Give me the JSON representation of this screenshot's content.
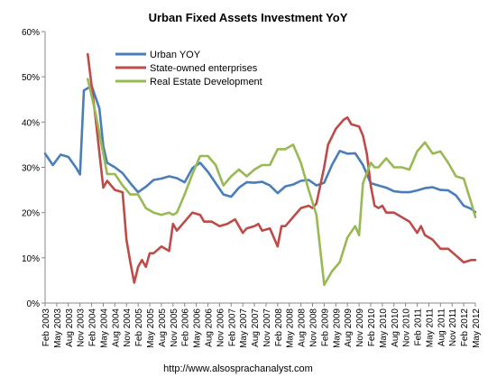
{
  "chart_data": {
    "type": "line",
    "title": "Urban Fixed Assets Investment YoY",
    "footer": "http://www.alsosprachanalyst.com",
    "xlabel": "",
    "ylabel": "",
    "ylim": [
      0,
      60
    ],
    "yticks": [
      "0%",
      "10%",
      "20%",
      "30%",
      "40%",
      "50%",
      "60%"
    ],
    "grid": false,
    "legend_position": "top-left",
    "x_start": "2003-02",
    "x_end": "2012-05",
    "x_tick_labels": [
      "Feb 2003",
      "May 2003",
      "Aug 2003",
      "Nov 2003",
      "Feb 2004",
      "May 2004",
      "Aug 2004",
      "Nov 2004",
      "Feb 2005",
      "May 2005",
      "Aug 2005",
      "Nov 2005",
      "Feb 2006",
      "May 2006",
      "Aug 2006",
      "Nov 2006",
      "Feb 2007",
      "May 2007",
      "Aug 2007",
      "Nov 2007",
      "Feb 2008",
      "May 2008",
      "Aug 2008",
      "Nov 2008",
      "Feb 2009",
      "May 2009",
      "Aug 2009",
      "Nov 2009",
      "Feb 2010",
      "May 2010",
      "Aug 2010",
      "Nov 2010",
      "Feb 2011",
      "May 2011",
      "Aug 2011",
      "Nov 2011",
      "Feb 2012",
      "May 2012"
    ],
    "series": [
      {
        "name": "Urban YOY",
        "color": "#4a7ebb",
        "points": [
          [
            "2003-02",
            33.0
          ],
          [
            "2003-04",
            30.5
          ],
          [
            "2003-06",
            32.8
          ],
          [
            "2003-08",
            32.3
          ],
          [
            "2003-10",
            29.9
          ],
          [
            "2003-11",
            28.4
          ],
          [
            "2003-12",
            47.0
          ],
          [
            "2004-02",
            48.0
          ],
          [
            "2004-04",
            43.0
          ],
          [
            "2004-05",
            34.7
          ],
          [
            "2004-06",
            31.0
          ],
          [
            "2004-08",
            30.0
          ],
          [
            "2004-10",
            28.7
          ],
          [
            "2004-12",
            26.5
          ],
          [
            "2005-02",
            24.5
          ],
          [
            "2005-04",
            25.7
          ],
          [
            "2005-06",
            27.2
          ],
          [
            "2005-08",
            27.5
          ],
          [
            "2005-10",
            28.0
          ],
          [
            "2005-12",
            27.6
          ],
          [
            "2006-02",
            26.7
          ],
          [
            "2006-04",
            29.8
          ],
          [
            "2006-06",
            31.0
          ],
          [
            "2006-08",
            29.0
          ],
          [
            "2006-10",
            26.5
          ],
          [
            "2006-12",
            24.0
          ],
          [
            "2007-02",
            23.5
          ],
          [
            "2007-04",
            25.5
          ],
          [
            "2007-06",
            26.7
          ],
          [
            "2007-08",
            26.6
          ],
          [
            "2007-10",
            26.8
          ],
          [
            "2007-12",
            26.0
          ],
          [
            "2008-02",
            24.3
          ],
          [
            "2008-04",
            25.8
          ],
          [
            "2008-06",
            26.2
          ],
          [
            "2008-08",
            27.0
          ],
          [
            "2008-10",
            27.2
          ],
          [
            "2008-12",
            26.0
          ],
          [
            "2009-02",
            26.6
          ],
          [
            "2009-04",
            30.5
          ],
          [
            "2009-06",
            33.6
          ],
          [
            "2009-08",
            33.0
          ],
          [
            "2009-10",
            33.1
          ],
          [
            "2009-12",
            30.5
          ],
          [
            "2010-02",
            26.5
          ],
          [
            "2010-04",
            26.0
          ],
          [
            "2010-06",
            25.5
          ],
          [
            "2010-08",
            24.7
          ],
          [
            "2010-10",
            24.5
          ],
          [
            "2010-12",
            24.5
          ],
          [
            "2011-02",
            24.9
          ],
          [
            "2011-04",
            25.4
          ],
          [
            "2011-06",
            25.6
          ],
          [
            "2011-08",
            25.0
          ],
          [
            "2011-10",
            24.9
          ],
          [
            "2011-12",
            23.8
          ],
          [
            "2012-02",
            21.5
          ],
          [
            "2012-04",
            20.8
          ],
          [
            "2012-05",
            20.1
          ]
        ]
      },
      {
        "name": "State-owned enterprises",
        "color": "#be4b48",
        "points": [
          [
            "2004-01",
            55.0
          ],
          [
            "2004-03",
            41.0
          ],
          [
            "2004-05",
            25.5
          ],
          [
            "2004-06",
            27.0
          ],
          [
            "2004-08",
            25.0
          ],
          [
            "2004-10",
            24.5
          ],
          [
            "2004-11",
            14.0
          ],
          [
            "2004-12",
            9.0
          ],
          [
            "2005-01",
            4.5
          ],
          [
            "2005-02",
            8.0
          ],
          [
            "2005-03",
            9.5
          ],
          [
            "2005-04",
            8.0
          ],
          [
            "2005-05",
            11.0
          ],
          [
            "2005-06",
            11.0
          ],
          [
            "2005-08",
            12.5
          ],
          [
            "2005-10",
            11.5
          ],
          [
            "2005-11",
            17.5
          ],
          [
            "2005-12",
            16.0
          ],
          [
            "2006-02",
            18.0
          ],
          [
            "2006-04",
            20.0
          ],
          [
            "2006-06",
            19.5
          ],
          [
            "2006-07",
            18.0
          ],
          [
            "2006-09",
            18.0
          ],
          [
            "2006-11",
            17.0
          ],
          [
            "2007-01",
            17.5
          ],
          [
            "2007-03",
            18.5
          ],
          [
            "2007-04",
            17.0
          ],
          [
            "2007-05",
            15.5
          ],
          [
            "2007-06",
            16.5
          ],
          [
            "2007-08",
            17.0
          ],
          [
            "2007-09",
            17.5
          ],
          [
            "2007-10",
            16.0
          ],
          [
            "2007-12",
            16.5
          ],
          [
            "2008-02",
            12.5
          ],
          [
            "2008-03",
            17.0
          ],
          [
            "2008-04",
            17.0
          ],
          [
            "2008-06",
            19.0
          ],
          [
            "2008-08",
            21.0
          ],
          [
            "2008-10",
            21.5
          ],
          [
            "2008-11",
            21.0
          ],
          [
            "2008-12",
            22.0
          ],
          [
            "2009-02",
            30.0
          ],
          [
            "2009-03",
            35.0
          ],
          [
            "2009-05",
            38.5
          ],
          [
            "2009-07",
            40.5
          ],
          [
            "2009-08",
            41.0
          ],
          [
            "2009-09",
            39.5
          ],
          [
            "2009-11",
            39.0
          ],
          [
            "2009-12",
            37.0
          ],
          [
            "2010-01",
            33.0
          ],
          [
            "2010-02",
            26.0
          ],
          [
            "2010-03",
            21.5
          ],
          [
            "2010-04",
            21.0
          ],
          [
            "2010-05",
            21.5
          ],
          [
            "2010-06",
            20.0
          ],
          [
            "2010-08",
            20.0
          ],
          [
            "2010-10",
            19.0
          ],
          [
            "2010-12",
            18.0
          ],
          [
            "2011-02",
            15.5
          ],
          [
            "2011-03",
            17.0
          ],
          [
            "2011-04",
            15.0
          ],
          [
            "2011-06",
            14.0
          ],
          [
            "2011-08",
            12.0
          ],
          [
            "2011-10",
            12.0
          ],
          [
            "2011-12",
            10.5
          ],
          [
            "2012-02",
            9.0
          ],
          [
            "2012-04",
            9.5
          ],
          [
            "2012-05",
            9.5
          ]
        ]
      },
      {
        "name": "Real Estate Development",
        "color": "#98b954",
        "points": [
          [
            "2004-01",
            49.5
          ],
          [
            "2004-03",
            42.0
          ],
          [
            "2004-05",
            33.0
          ],
          [
            "2004-06",
            28.5
          ],
          [
            "2004-08",
            28.5
          ],
          [
            "2004-10",
            26.0
          ],
          [
            "2004-12",
            24.0
          ],
          [
            "2005-02",
            24.0
          ],
          [
            "2005-04",
            21.0
          ],
          [
            "2005-06",
            20.0
          ],
          [
            "2005-08",
            19.5
          ],
          [
            "2005-10",
            20.0
          ],
          [
            "2005-11",
            19.5
          ],
          [
            "2005-12",
            20.0
          ],
          [
            "2006-02",
            24.0
          ],
          [
            "2006-04",
            28.5
          ],
          [
            "2006-05",
            30.5
          ],
          [
            "2006-06",
            32.5
          ],
          [
            "2006-08",
            32.5
          ],
          [
            "2006-10",
            30.5
          ],
          [
            "2006-12",
            26.0
          ],
          [
            "2007-02",
            28.0
          ],
          [
            "2007-04",
            29.5
          ],
          [
            "2007-06",
            28.0
          ],
          [
            "2007-08",
            29.5
          ],
          [
            "2007-10",
            30.5
          ],
          [
            "2007-12",
            30.5
          ],
          [
            "2008-02",
            34.0
          ],
          [
            "2008-04",
            34.0
          ],
          [
            "2008-06",
            35.0
          ],
          [
            "2008-08",
            31.0
          ],
          [
            "2008-10",
            25.0
          ],
          [
            "2008-12",
            19.5
          ],
          [
            "2009-02",
            4.0
          ],
          [
            "2009-04",
            7.0
          ],
          [
            "2009-06",
            9.0
          ],
          [
            "2009-08",
            14.5
          ],
          [
            "2009-10",
            17.0
          ],
          [
            "2009-11",
            15.0
          ],
          [
            "2009-12",
            26.5
          ],
          [
            "2010-02",
            31.0
          ],
          [
            "2010-03",
            30.0
          ],
          [
            "2010-04",
            30.0
          ],
          [
            "2010-06",
            32.0
          ],
          [
            "2010-08",
            30.0
          ],
          [
            "2010-10",
            30.0
          ],
          [
            "2010-12",
            29.5
          ],
          [
            "2011-02",
            33.5
          ],
          [
            "2011-04",
            35.5
          ],
          [
            "2011-06",
            33.0
          ],
          [
            "2011-08",
            33.5
          ],
          [
            "2011-10",
            31.0
          ],
          [
            "2011-12",
            28.0
          ],
          [
            "2012-02",
            27.5
          ],
          [
            "2012-04",
            22.0
          ],
          [
            "2012-05",
            19.0
          ]
        ]
      }
    ]
  }
}
